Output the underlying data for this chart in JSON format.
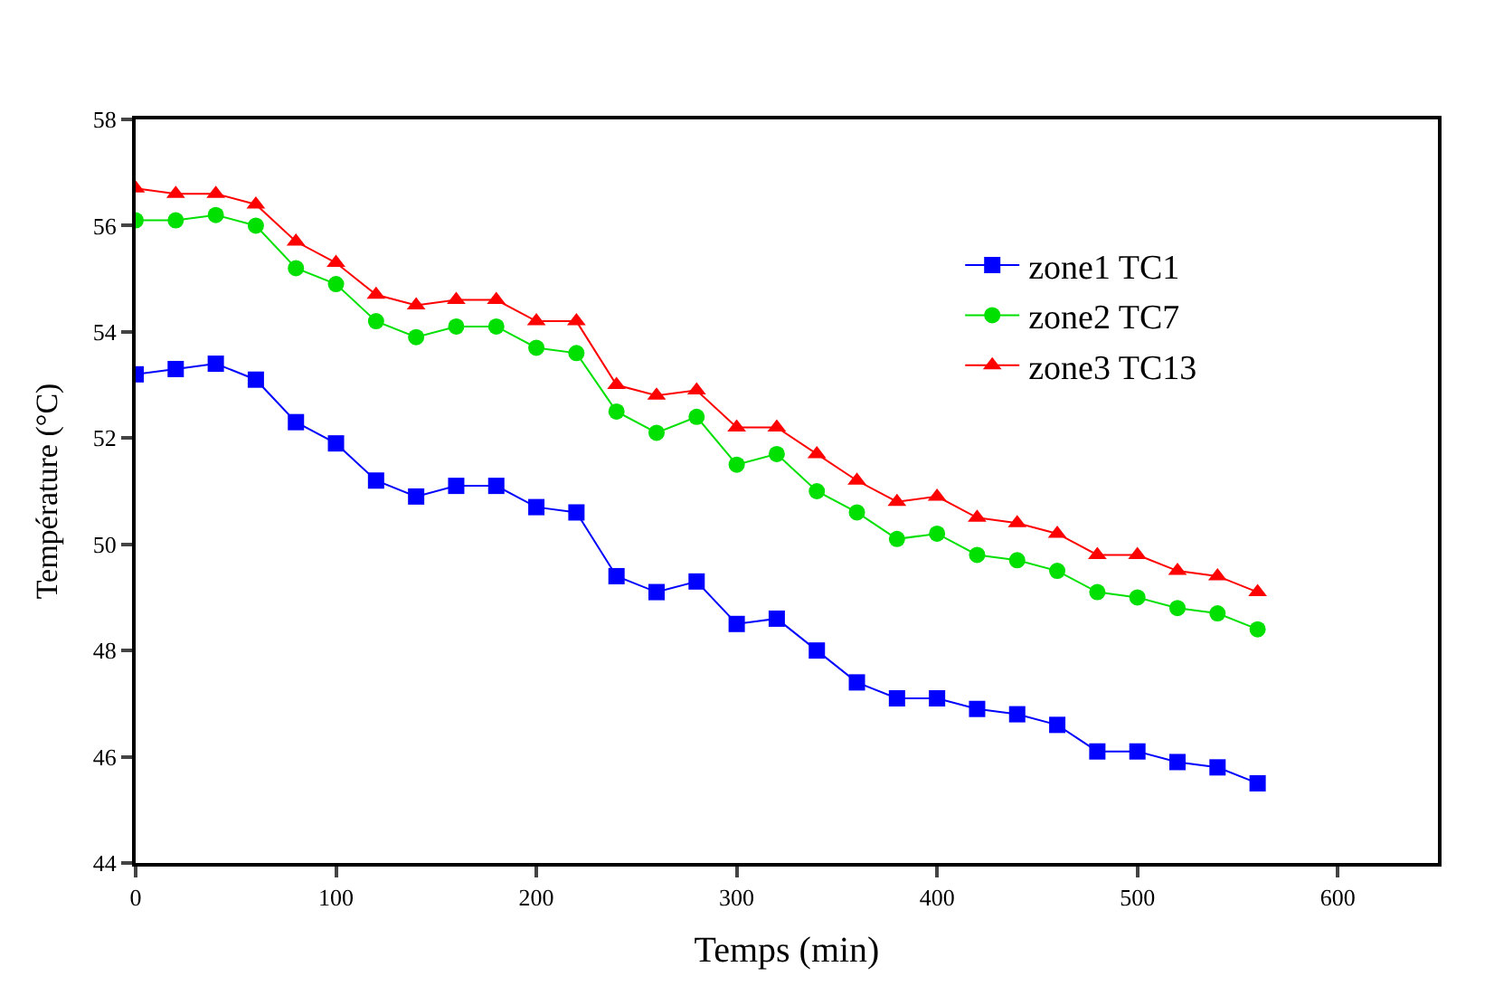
{
  "chart_data": {
    "type": "line",
    "xlabel": "Temps (min)",
    "ylabel": "Température (°C)",
    "x": [
      0,
      20,
      40,
      60,
      80,
      100,
      120,
      140,
      160,
      180,
      200,
      220,
      240,
      260,
      280,
      300,
      320,
      340,
      360,
      380,
      400,
      420,
      440,
      460,
      480,
      500,
      520,
      540,
      560
    ],
    "series": [
      {
        "name": "zone1 TC1",
        "color": "#0000ff",
        "marker": "square",
        "values": [
          53.2,
          53.3,
          53.4,
          53.1,
          52.3,
          51.9,
          51.2,
          50.9,
          51.1,
          51.1,
          50.7,
          50.6,
          49.4,
          49.1,
          49.3,
          48.5,
          48.6,
          48.0,
          47.4,
          47.1,
          47.1,
          46.9,
          46.8,
          46.6,
          46.1,
          46.1,
          45.9,
          45.8,
          45.5
        ]
      },
      {
        "name": "zone2 TC7",
        "color": "#00e000",
        "marker": "circle",
        "values": [
          56.1,
          56.1,
          56.2,
          56.0,
          55.2,
          54.9,
          54.2,
          53.9,
          54.1,
          54.1,
          53.7,
          53.6,
          52.5,
          52.1,
          52.4,
          51.5,
          51.7,
          51.0,
          50.6,
          50.1,
          50.2,
          49.8,
          49.7,
          49.5,
          49.1,
          49.0,
          48.8,
          48.7,
          48.4
        ]
      },
      {
        "name": "zone3 TC13",
        "color": "#ff0000",
        "marker": "triangle",
        "values": [
          56.7,
          56.6,
          56.6,
          56.4,
          55.7,
          55.3,
          54.7,
          54.5,
          54.6,
          54.6,
          54.2,
          54.2,
          53.0,
          52.8,
          52.9,
          52.2,
          52.2,
          51.7,
          51.2,
          50.8,
          50.9,
          50.5,
          50.4,
          50.2,
          49.8,
          49.8,
          49.5,
          49.4,
          49.1
        ]
      }
    ],
    "xlim": [
      0,
      650
    ],
    "xticks": [
      0,
      100,
      200,
      300,
      400,
      500,
      600
    ],
    "ylim": [
      44,
      58
    ],
    "yticks": [
      44,
      46,
      48,
      50,
      52,
      54,
      56,
      58
    ],
    "legend": "top right"
  }
}
